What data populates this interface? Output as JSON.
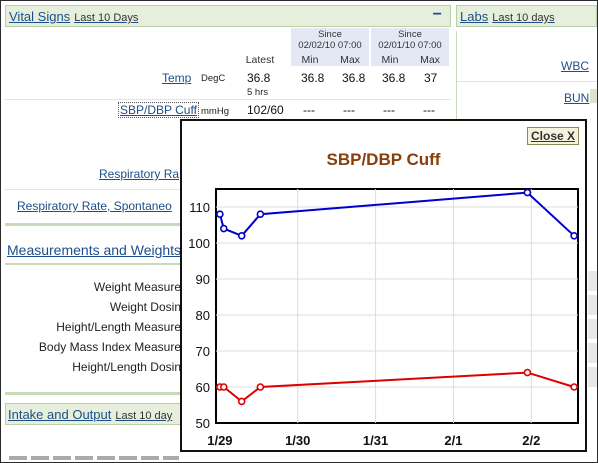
{
  "vital_signs": {
    "title": "Vital Signs",
    "range": "Last 10 Days",
    "toggle": "−",
    "since_label": "Since",
    "since_dates": [
      "02/02/10 07:00",
      "02/01/10 07:00"
    ],
    "col_latest": "Latest",
    "col_min": "Min",
    "col_max": "Max",
    "rows": [
      {
        "name": "Temp",
        "unit": "DegC",
        "latest": "36.8",
        "sub": "5 hrs",
        "min1": "36.8",
        "max1": "36.8",
        "min2": "36.8",
        "max2": "37"
      },
      {
        "name": "SBP/DBP Cuff",
        "unit": "mmHg",
        "latest": "102/60",
        "min1": "---",
        "max1": "---",
        "min2": "---",
        "max2": "---"
      },
      {
        "name": "Respiratory Ra"
      },
      {
        "name": "Respiratory Rate, Spontaneo"
      }
    ]
  },
  "measurements": {
    "title": "Measurements and Weights",
    "rows": [
      "Weight Measure",
      "Weight Dosin",
      "Height/Length Measure",
      "Body Mass Index Measure",
      "Height/Length Dosin"
    ]
  },
  "intake": {
    "title": "Intake and Output",
    "range": "Last 10 day"
  },
  "labs": {
    "title": "Labs",
    "range": "Last 10 days",
    "items": [
      "WBC",
      "BUN"
    ]
  },
  "popup": {
    "close_label": "Close X",
    "colors": {
      "sbp": "#0000cc",
      "dbp": "#dd0000",
      "title": "#8a3e0c"
    }
  },
  "chart_data": {
    "type": "line",
    "title": "SBP/DBP Cuff",
    "xlabel": "",
    "ylabel": "",
    "ylim": [
      50,
      115
    ],
    "yticks": [
      50,
      60,
      70,
      80,
      90,
      100,
      110
    ],
    "xticks": [
      "1/29",
      "1/30",
      "1/31",
      "2/1",
      "2/2"
    ],
    "grid": true,
    "series": [
      {
        "color": "#0000cc",
        "x": [
          0.0,
          0.05,
          0.28,
          0.52,
          3.95,
          4.55
        ],
        "y": [
          108,
          104,
          102,
          108,
          114,
          102
        ]
      },
      {
        "color": "#dd0000",
        "x": [
          0.0,
          0.05,
          0.28,
          0.52,
          3.95,
          4.55
        ],
        "y": [
          60,
          60,
          56,
          60,
          64,
          60
        ]
      }
    ]
  }
}
